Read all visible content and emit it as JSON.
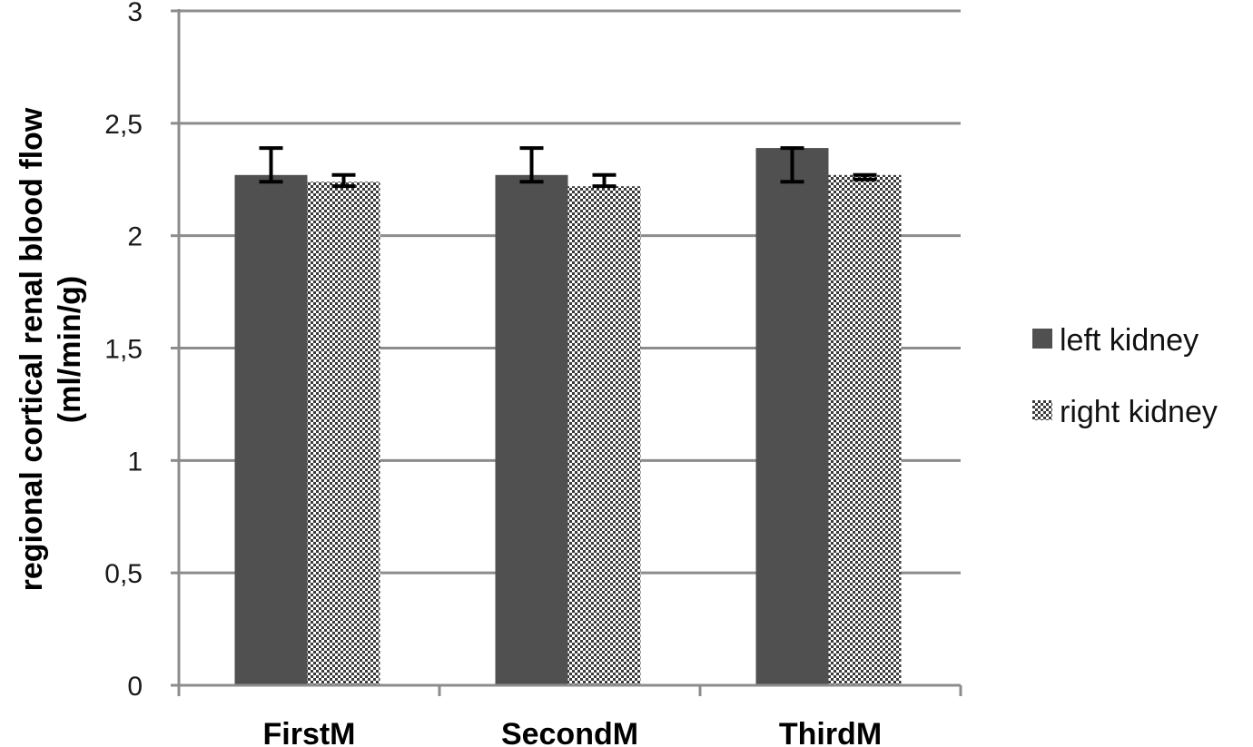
{
  "chart_data": {
    "type": "bar",
    "title": "",
    "xlabel": "",
    "ylabel": {
      "line1": "regional cortical renal blood flow",
      "line2": "(ml/min/g)"
    },
    "categories": [
      "FirstM",
      "SecondM",
      "ThirdM"
    ],
    "series": [
      {
        "name": "left kidney",
        "values": [
          2.27,
          2.27,
          2.39
        ],
        "error_low": [
          0.03,
          0.03,
          0.15
        ],
        "error_high": [
          0.12,
          0.12,
          0.0
        ],
        "color": "#505050",
        "pattern": "solid"
      },
      {
        "name": "right kidney",
        "values": [
          2.24,
          2.22,
          2.27
        ],
        "error_low": [
          0.02,
          0.0,
          0.02
        ],
        "error_high": [
          0.03,
          0.05,
          0.0
        ],
        "color": "#404040",
        "pattern": "checkered"
      }
    ],
    "ylim": [
      0,
      3
    ],
    "yticks": [
      0,
      0.5,
      1,
      1.5,
      2,
      2.5,
      3
    ],
    "ytick_labels": [
      "0",
      "0,5",
      "1",
      "1,5",
      "2",
      "2,5",
      "3"
    ],
    "grid": true,
    "legend_position": "right"
  }
}
